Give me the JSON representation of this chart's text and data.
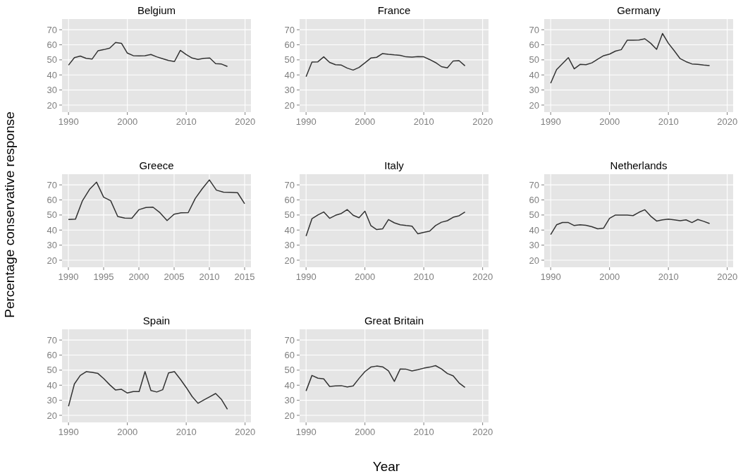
{
  "chart_data": [
    {
      "type": "line",
      "title": "Belgium",
      "x": [
        1990,
        1991,
        1992,
        1993,
        1994,
        1995,
        1996,
        1997,
        1998,
        1999,
        2000,
        2001,
        2002,
        2003,
        2004,
        2005,
        2006,
        2007,
        2008,
        2009,
        2010,
        2011,
        2012,
        2013,
        2014,
        2015,
        2016,
        2017
      ],
      "values": [
        46.5,
        51.5,
        52.5,
        51,
        50.5,
        56,
        56.8,
        57.8,
        61.5,
        61,
        54.5,
        52.8,
        52.6,
        52.8,
        53.6,
        52,
        50.8,
        49.6,
        48.9,
        56.3,
        53.5,
        51.2,
        50.3,
        51,
        51.2,
        47.5,
        47.2,
        45.6
      ],
      "color": "#333333",
      "xlim": [
        1988.9,
        2021
      ],
      "ylim": [
        15.3,
        77.1
      ],
      "xticks": [
        1990,
        2000,
        2010,
        2020
      ],
      "yticks": [
        20,
        30,
        40,
        50,
        60,
        70
      ],
      "grid": true
    },
    {
      "type": "line",
      "title": "France",
      "x": [
        1990,
        1991,
        1992,
        1993,
        1994,
        1995,
        1996,
        1997,
        1998,
        1999,
        2000,
        2001,
        2002,
        2003,
        2004,
        2005,
        2006,
        2007,
        2008,
        2009,
        2010,
        2011,
        2012,
        2013,
        2014,
        2015,
        2016,
        2017
      ],
      "values": [
        38.8,
        48.5,
        48.7,
        52,
        48.3,
        46.8,
        46.5,
        44.5,
        43.2,
        45,
        48,
        51.2,
        51.7,
        54.2,
        53.7,
        53.3,
        53,
        52,
        51.8,
        52.2,
        52,
        50.2,
        48.2,
        45.5,
        44.7,
        49.3,
        49.5,
        46
      ],
      "color": "#333333",
      "xlim": [
        1988.9,
        2021
      ],
      "ylim": [
        15.3,
        77.1
      ],
      "xticks": [
        1990,
        2000,
        2010,
        2020
      ],
      "yticks": [
        20,
        30,
        40,
        50,
        60,
        70
      ],
      "grid": true
    },
    {
      "type": "line",
      "title": "Germany",
      "x": [
        1990,
        1991,
        1992,
        1993,
        1994,
        1995,
        1996,
        1997,
        1998,
        1999,
        2000,
        2001,
        2002,
        2003,
        2004,
        2005,
        2006,
        2007,
        2008,
        2009,
        2010,
        2011,
        2012,
        2013,
        2014,
        2015,
        2016,
        2017
      ],
      "values": [
        34.5,
        43.5,
        47.5,
        51.5,
        44,
        47,
        46.8,
        48,
        50.5,
        52.8,
        53.8,
        55.8,
        56.8,
        63,
        63,
        63.2,
        64,
        61,
        57,
        67.5,
        61,
        56,
        50.8,
        48.8,
        47.3,
        47,
        46.5,
        46.2
      ],
      "color": "#333333",
      "xlim": [
        1988.9,
        2021
      ],
      "ylim": [
        15.3,
        77.1
      ],
      "xticks": [
        1990,
        2000,
        2010,
        2020
      ],
      "yticks": [
        20,
        30,
        40,
        50,
        60,
        70
      ],
      "grid": true
    },
    {
      "type": "line",
      "title": "Greece",
      "ylabel": "Percentage conservative response",
      "x": [
        1990,
        1991,
        1992,
        1993,
        1994,
        1995,
        1996,
        1997,
        1998,
        1999,
        2000,
        2001,
        2002,
        2003,
        2004,
        2005,
        2006,
        2007,
        2008,
        2009,
        2010,
        2011,
        2012,
        2013,
        2014,
        2015
      ],
      "values": [
        47,
        47.2,
        59.5,
        67,
        71.8,
        61.8,
        59.5,
        49,
        48,
        47.8,
        53.5,
        55,
        55.2,
        51.5,
        46.3,
        50.5,
        51.5,
        51.6,
        61,
        67.5,
        73.3,
        66.5,
        65.2,
        65,
        64.8,
        57.5
      ],
      "color": "#333333",
      "xlim": [
        1989.1,
        2015.9
      ],
      "ylim": [
        15.3,
        77.1
      ],
      "xticks": [
        1990,
        1995,
        2000,
        2005,
        2010,
        2015
      ],
      "yticks": [
        20,
        30,
        40,
        50,
        60,
        70
      ],
      "grid": true
    },
    {
      "type": "line",
      "title": "Italy",
      "x": [
        1990,
        1991,
        1992,
        1993,
        1994,
        1995,
        1996,
        1997,
        1998,
        1999,
        2000,
        2001,
        2002,
        2003,
        2004,
        2005,
        2006,
        2007,
        2008,
        2009,
        2010,
        2011,
        2012,
        2013,
        2014,
        2015,
        2016,
        2017
      ],
      "values": [
        36,
        47.5,
        50,
        52,
        47.8,
        49.8,
        51,
        53.6,
        49.8,
        48.2,
        52.5,
        43,
        40.3,
        40.8,
        47,
        44.8,
        43.5,
        43,
        42.6,
        37.5,
        38.5,
        39.3,
        43,
        45.2,
        46.2,
        48.5,
        49.5,
        52
      ],
      "color": "#333333",
      "xlim": [
        1988.9,
        2021
      ],
      "ylim": [
        15.3,
        77.1
      ],
      "xticks": [
        1990,
        2000,
        2010,
        2020
      ],
      "yticks": [
        20,
        30,
        40,
        50,
        60,
        70
      ],
      "grid": true
    },
    {
      "type": "line",
      "title": "Netherlands",
      "x": [
        1990,
        1991,
        1992,
        1993,
        1994,
        1995,
        1996,
        1997,
        1998,
        1999,
        2000,
        2001,
        2002,
        2003,
        2004,
        2005,
        2006,
        2007,
        2008,
        2009,
        2010,
        2011,
        2012,
        2013,
        2014,
        2015,
        2016,
        2017
      ],
      "values": [
        37,
        43.5,
        45,
        45,
        43,
        43.5,
        43.2,
        42.2,
        40.8,
        41.3,
        47.8,
        50,
        50,
        50,
        49.6,
        51.8,
        53.5,
        49.2,
        46,
        46.8,
        47.3,
        46.8,
        46.2,
        46.8,
        45,
        47,
        45.8,
        44.3
      ],
      "color": "#333333",
      "xlim": [
        1988.9,
        2021
      ],
      "ylim": [
        15.3,
        77.1
      ],
      "xticks": [
        1990,
        2000,
        2010,
        2020
      ],
      "yticks": [
        20,
        30,
        40,
        50,
        60,
        70
      ],
      "grid": true
    },
    {
      "type": "line",
      "title": "Spain",
      "x": [
        1990,
        1991,
        1992,
        1993,
        1994,
        1995,
        1996,
        1997,
        1998,
        1999,
        2000,
        2001,
        2002,
        2003,
        2004,
        2005,
        2006,
        2007,
        2008,
        2009,
        2010,
        2011,
        2012,
        2013,
        2014,
        2015,
        2016,
        2017
      ],
      "values": [
        26,
        40.8,
        46.5,
        49,
        48.5,
        47.8,
        44.3,
        40.3,
        36.8,
        37.3,
        34.8,
        35.8,
        35.8,
        49,
        36.5,
        35.5,
        37,
        48.2,
        49,
        44,
        38.5,
        32.5,
        28,
        30.2,
        32.3,
        34.5,
        30.5,
        24
      ],
      "color": "#333333",
      "xlim": [
        1988.9,
        2021
      ],
      "ylim": [
        15.3,
        77.1
      ],
      "xticks": [
        1990,
        2000,
        2010,
        2020
      ],
      "yticks": [
        20,
        30,
        40,
        50,
        60,
        70
      ],
      "grid": true
    },
    {
      "type": "line",
      "title": "Great Britain",
      "xlabel": "Year",
      "x": [
        1990,
        1991,
        1992,
        1993,
        1994,
        1995,
        1996,
        1997,
        1998,
        1999,
        2000,
        2001,
        2002,
        2003,
        2004,
        2005,
        2006,
        2007,
        2008,
        2009,
        2010,
        2011,
        2012,
        2013,
        2014,
        2015,
        2016,
        2017
      ],
      "values": [
        36.2,
        46.5,
        44.7,
        44.2,
        39.2,
        39.5,
        39.7,
        38.8,
        39.5,
        44.5,
        49,
        52,
        52.7,
        52.2,
        49.5,
        42.5,
        50.8,
        50.6,
        49.5,
        50.3,
        51.3,
        52,
        53,
        50.8,
        47.8,
        46.2,
        41.5,
        38.5
      ],
      "color": "#333333",
      "xlim": [
        1988.9,
        2021
      ],
      "ylim": [
        15.3,
        77.1
      ],
      "xticks": [
        1990,
        2000,
        2010,
        2020
      ],
      "yticks": [
        20,
        30,
        40,
        50,
        60,
        70
      ],
      "grid": true
    }
  ]
}
